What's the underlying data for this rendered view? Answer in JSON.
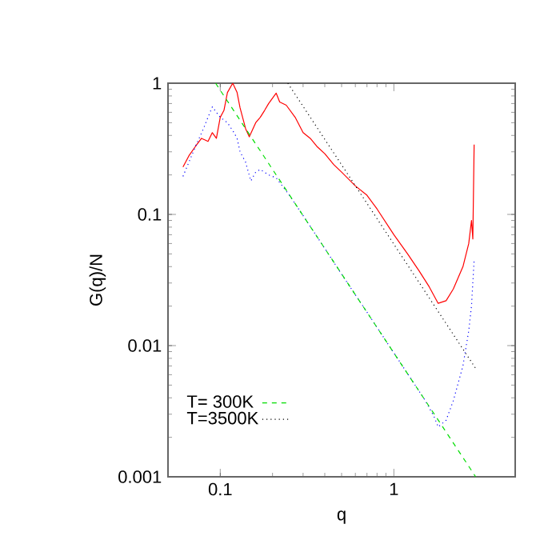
{
  "chart_data": {
    "type": "line",
    "xlabel": "q",
    "ylabel": "G(q)/N",
    "log": "xy",
    "xlim": [
      0.05,
      5
    ],
    "ylim": [
      0.001,
      1
    ],
    "xticks": [
      0.1,
      1
    ],
    "yticks": [
      0.001,
      0.01,
      0.1,
      1
    ],
    "legend": "bottom left",
    "series": [
      {
        "color": "#ff0000",
        "line_style": "solid",
        "x": [
          0.061,
          0.066,
          0.072,
          0.078,
          0.085,
          0.09,
          0.095,
          0.1,
          0.105,
          0.11,
          0.118,
          0.125,
          0.13,
          0.14,
          0.147,
          0.16,
          0.17,
          0.18,
          0.19,
          0.21,
          0.22,
          0.24,
          0.27,
          0.3,
          0.33,
          0.36,
          0.4,
          0.45,
          0.5,
          0.6,
          0.7,
          0.8,
          1.0,
          1.2,
          1.4,
          1.6,
          1.8,
          2.0,
          2.2,
          2.5,
          2.7,
          2.8,
          2.85,
          2.9
        ],
        "values": [
          0.23,
          0.28,
          0.33,
          0.38,
          0.36,
          0.42,
          0.38,
          0.55,
          0.62,
          0.85,
          1.0,
          0.85,
          0.65,
          0.45,
          0.39,
          0.5,
          0.55,
          0.62,
          0.7,
          0.84,
          0.72,
          0.68,
          0.55,
          0.42,
          0.38,
          0.33,
          0.29,
          0.24,
          0.21,
          0.165,
          0.14,
          0.11,
          0.07,
          0.05,
          0.037,
          0.028,
          0.021,
          0.022,
          0.027,
          0.04,
          0.06,
          0.09,
          0.065,
          0.34
        ]
      },
      {
        "color": "#0000ff",
        "line_style": "dotted",
        "x": [
          0.061,
          0.066,
          0.072,
          0.08,
          0.085,
          0.09,
          0.095,
          0.1,
          0.11,
          0.12,
          0.125,
          0.13,
          0.14,
          0.15,
          0.16,
          0.17,
          0.19,
          0.21,
          0.25,
          0.3,
          0.4,
          0.5,
          0.7,
          1.0,
          1.3,
          1.5,
          1.7,
          1.8,
          2.0,
          2.2,
          2.5,
          2.7,
          2.8,
          2.9
        ],
        "values": [
          0.195,
          0.25,
          0.33,
          0.45,
          0.55,
          0.66,
          0.6,
          0.55,
          0.5,
          0.42,
          0.38,
          0.3,
          0.25,
          0.18,
          0.21,
          0.22,
          0.2,
          0.19,
          0.14,
          0.098,
          0.055,
          0.035,
          0.018,
          0.0088,
          0.0052,
          0.0039,
          0.0029,
          0.0024,
          0.0027,
          0.0038,
          0.007,
          0.013,
          0.02,
          0.045
        ]
      },
      {
        "name": "T= 300K",
        "color": "#00dd00",
        "line_style": "dashed",
        "x": [
          0.094,
          2.96
        ],
        "values": [
          1,
          0.001
        ]
      },
      {
        "name": "T=3500K",
        "color": "#000000",
        "line_style": "dotted",
        "x": [
          0.245,
          2.96
        ],
        "values": [
          1,
          0.0067
        ]
      }
    ]
  }
}
